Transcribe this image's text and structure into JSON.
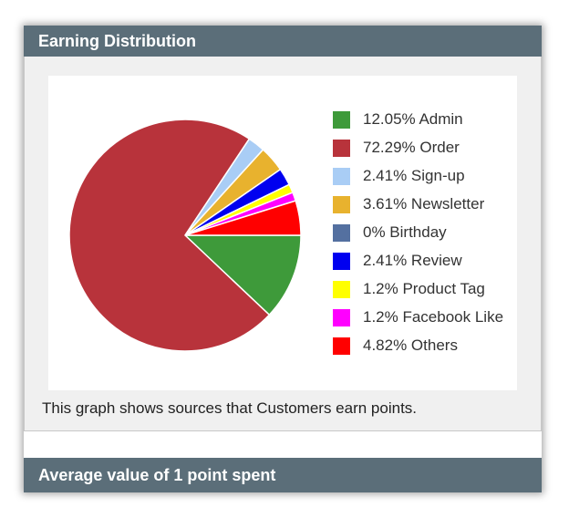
{
  "earning_section": {
    "title": "Earning Distribution",
    "caption": "This graph shows sources that Customers earn points."
  },
  "average_section": {
    "title": "Average value of 1 point spent"
  },
  "chart_data": {
    "type": "pie",
    "slices": [
      {
        "label": "12.05% Admin",
        "value": 12.05,
        "color": "#3e9a3a"
      },
      {
        "label": "72.29% Order",
        "value": 72.29,
        "color": "#b8333b"
      },
      {
        "label": "2.41% Sign-up",
        "value": 2.41,
        "color": "#a9cdf5"
      },
      {
        "label": "3.61% Newsletter",
        "value": 3.61,
        "color": "#e8b22e"
      },
      {
        "label": "0% Birthday",
        "value": 0,
        "color": "#5470a0"
      },
      {
        "label": "2.41% Review",
        "value": 2.41,
        "color": "#0000f0"
      },
      {
        "label": "1.2% Product Tag",
        "value": 1.2,
        "color": "#ffff00"
      },
      {
        "label": "1.2% Facebook Like",
        "value": 1.2,
        "color": "#ff00ff"
      },
      {
        "label": "4.82% Others",
        "value": 4.82,
        "color": "#ff0000"
      }
    ],
    "start_angle_deg": 0,
    "direction": "clockwise",
    "legend_position": "right"
  }
}
